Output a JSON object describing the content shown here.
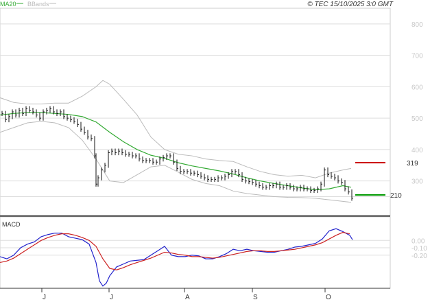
{
  "legend": {
    "ma_label": "MA20",
    "bb_label": "BBands",
    "ma_color": "#33aa33",
    "bb_color": "#bbbbbb"
  },
  "copyright": "© TEC 15/10/2025 3:0 GMT",
  "months": [
    "J",
    "J",
    "A",
    "S",
    "O"
  ],
  "levels": {
    "resistance": "319",
    "support": "210",
    "resistance_color": "#cc0000",
    "support_color": "#009900"
  },
  "chart_data": [
    {
      "type": "line",
      "panel": "price",
      "yticks": [
        "800",
        "700",
        "600",
        "500",
        "400",
        "300"
      ],
      "ylim": [
        190,
        850
      ],
      "grid": true,
      "series": [
        {
          "name": "MA20",
          "color": "#33aa33",
          "x": [
            0,
            20,
            40,
            60,
            80,
            100,
            120,
            140,
            160,
            180,
            200,
            220,
            240,
            260,
            280,
            300,
            320,
            340,
            360,
            380,
            400,
            420,
            440,
            460,
            480,
            500,
            512
          ],
          "values": [
            510,
            515,
            518,
            518,
            515,
            512,
            505,
            488,
            455,
            425,
            400,
            382,
            372,
            358,
            348,
            340,
            332,
            322,
            310,
            300,
            292,
            285,
            278,
            272,
            275,
            285,
            280
          ]
        },
        {
          "name": "BBands",
          "color": "#bbbbbb",
          "x": [
            0,
            20,
            40,
            60,
            80,
            100,
            120,
            140,
            150,
            160,
            180,
            200,
            220,
            240,
            260,
            280,
            300,
            320,
            340,
            360,
            380,
            400,
            420,
            440,
            460,
            480,
            500,
            512
          ],
          "values": [
            565,
            550,
            545,
            545,
            548,
            548,
            570,
            600,
            620,
            608,
            560,
            510,
            440,
            400,
            385,
            380,
            370,
            365,
            362,
            345,
            330,
            320,
            315,
            318,
            310,
            325,
            335,
            340
          ]
        },
        {
          "name": "BBands",
          "color": "#bbbbbb",
          "x": [
            0,
            20,
            40,
            60,
            80,
            100,
            120,
            140,
            160,
            180,
            200,
            220,
            240,
            260,
            280,
            300,
            320,
            340,
            360,
            380,
            400,
            420,
            440,
            460,
            480,
            500,
            512
          ],
          "values": [
            455,
            470,
            485,
            490,
            485,
            470,
            430,
            370,
            300,
            295,
            320,
            345,
            350,
            328,
            305,
            292,
            285,
            268,
            260,
            255,
            250,
            248,
            247,
            245,
            240,
            235,
            232
          ]
        }
      ],
      "bars": {
        "x": [
          3,
          8,
          13,
          18,
          23,
          28,
          33,
          38,
          43,
          48,
          53,
          58,
          63,
          68,
          73,
          78,
          83,
          88,
          93,
          98,
          103,
          108,
          113,
          118,
          123,
          128,
          133,
          138,
          140,
          143,
          148,
          153,
          158,
          163,
          168,
          173,
          178,
          183,
          188,
          193,
          198,
          203,
          208,
          213,
          218,
          223,
          228,
          233,
          238,
          243,
          248,
          253,
          258,
          263,
          268,
          273,
          278,
          283,
          288,
          293,
          298,
          303,
          308,
          313,
          318,
          323,
          328,
          333,
          338,
          343,
          348,
          353,
          358,
          363,
          368,
          373,
          378,
          383,
          388,
          393,
          398,
          403,
          408,
          413,
          418,
          423,
          428,
          433,
          438,
          443,
          448,
          453,
          458,
          463,
          468,
          473,
          478,
          483,
          488,
          493,
          498,
          503,
          508,
          513
        ],
        "close": [
          515,
          495,
          505,
          520,
          510,
          525,
          515,
          530,
          525,
          520,
          510,
          500,
          520,
          525,
          530,
          520,
          515,
          520,
          505,
          500,
          495,
          490,
          480,
          465,
          455,
          440,
          435,
          380,
          290,
          310,
          335,
          350,
          390,
          395,
          390,
          395,
          390,
          385,
          385,
          380,
          380,
          370,
          365,
          365,
          365,
          360,
          360,
          370,
          375,
          380,
          380,
          360,
          340,
          330,
          330,
          330,
          325,
          325,
          320,
          315,
          310,
          305,
          305,
          305,
          310,
          310,
          315,
          320,
          330,
          330,
          320,
          305,
          300,
          298,
          295,
          290,
          285,
          280,
          280,
          285,
          285,
          290,
          280,
          280,
          285,
          280,
          275,
          275,
          280,
          275,
          275,
          270,
          270,
          275,
          290,
          335,
          320,
          315,
          310,
          300,
          295,
          275,
          265,
          245
        ]
      }
    },
    {
      "type": "line",
      "panel": "macd",
      "yticks": [
        "0.00",
        "-0.10",
        "-0.20"
      ],
      "ylim": [
        -0.65,
        0.32
      ],
      "grid": true,
      "series": [
        {
          "name": "MACD",
          "color": "#2222cc",
          "x": [
            0,
            10,
            20,
            30,
            40,
            50,
            60,
            70,
            80,
            90,
            100,
            110,
            120,
            130,
            140,
            145,
            150,
            155,
            160,
            170,
            180,
            190,
            200,
            210,
            220,
            230,
            240,
            250,
            260,
            270,
            280,
            290,
            300,
            310,
            320,
            330,
            340,
            350,
            360,
            370,
            380,
            390,
            400,
            410,
            420,
            430,
            440,
            450,
            460,
            470,
            480,
            490,
            500,
            510,
            514
          ],
          "values": [
            -0.22,
            -0.25,
            -0.2,
            -0.1,
            -0.05,
            -0.02,
            0.05,
            0.08,
            0.1,
            0.1,
            0.05,
            0.03,
            0.01,
            -0.05,
            -0.3,
            -0.55,
            -0.62,
            -0.58,
            -0.48,
            -0.36,
            -0.32,
            -0.28,
            -0.27,
            -0.26,
            -0.2,
            -0.14,
            -0.08,
            -0.2,
            -0.22,
            -0.22,
            -0.2,
            -0.21,
            -0.25,
            -0.25,
            -0.22,
            -0.18,
            -0.12,
            -0.14,
            -0.12,
            -0.14,
            -0.15,
            -0.16,
            -0.16,
            -0.14,
            -0.12,
            -0.09,
            -0.08,
            -0.06,
            -0.04,
            0.02,
            0.13,
            0.16,
            0.12,
            0.07,
            0.01
          ]
        },
        {
          "name": "Signal",
          "color": "#cc2222",
          "x": [
            0,
            10,
            20,
            30,
            40,
            50,
            60,
            70,
            80,
            90,
            100,
            110,
            120,
            130,
            140,
            150,
            160,
            170,
            180,
            190,
            200,
            210,
            220,
            230,
            240,
            250,
            260,
            270,
            280,
            290,
            300,
            310,
            320,
            330,
            340,
            350,
            360,
            370,
            380,
            390,
            400,
            410,
            420,
            430,
            440,
            450,
            460,
            470,
            480,
            490,
            500,
            510
          ],
          "values": [
            -0.3,
            -0.28,
            -0.24,
            -0.18,
            -0.12,
            -0.06,
            0.0,
            0.04,
            0.07,
            0.09,
            0.09,
            0.07,
            0.04,
            0.0,
            -0.08,
            -0.25,
            -0.38,
            -0.4,
            -0.37,
            -0.33,
            -0.3,
            -0.27,
            -0.24,
            -0.2,
            -0.16,
            -0.17,
            -0.19,
            -0.2,
            -0.22,
            -0.22,
            -0.23,
            -0.24,
            -0.23,
            -0.21,
            -0.19,
            -0.17,
            -0.15,
            -0.14,
            -0.14,
            -0.15,
            -0.15,
            -0.14,
            -0.13,
            -0.12,
            -0.1,
            -0.08,
            -0.06,
            -0.03,
            0.02,
            0.07,
            0.11,
            0.09
          ]
        }
      ]
    }
  ]
}
